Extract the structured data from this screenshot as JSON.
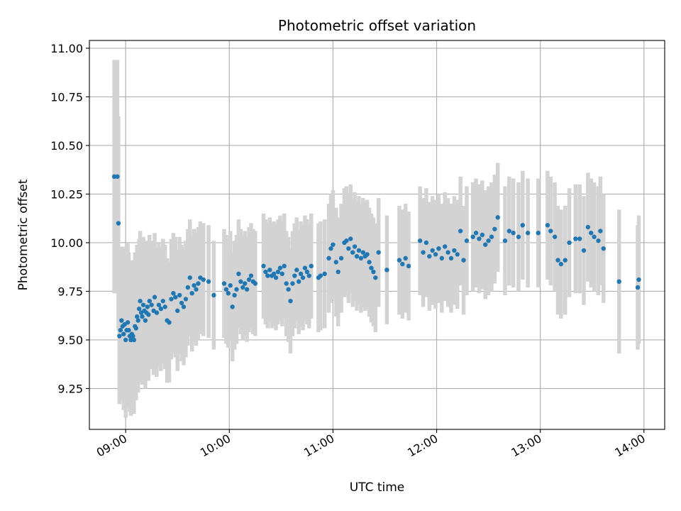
{
  "chart_data": {
    "type": "scatter",
    "title": "Photometric offset variation",
    "xlabel": "UTC time",
    "ylabel": "Photometric offset",
    "x_unit": "hours UTC",
    "xlim": [
      8.65,
      14.2
    ],
    "ylim": [
      9.04,
      11.04
    ],
    "x_ticks": [
      {
        "value": 9,
        "label": "09:00"
      },
      {
        "value": 10,
        "label": "10:00"
      },
      {
        "value": 11,
        "label": "11:00"
      },
      {
        "value": 12,
        "label": "12:00"
      },
      {
        "value": 13,
        "label": "13:00"
      },
      {
        "value": 14,
        "label": "14:00"
      }
    ],
    "y_ticks": [
      {
        "value": 9.25,
        "label": "9.25"
      },
      {
        "value": 9.5,
        "label": "9.50"
      },
      {
        "value": 9.75,
        "label": "9.75"
      },
      {
        "value": 10.0,
        "label": "10.00"
      },
      {
        "value": 10.25,
        "label": "10.25"
      },
      {
        "value": 10.5,
        "label": "10.50"
      },
      {
        "value": 10.75,
        "label": "10.75"
      },
      {
        "value": 11.0,
        "label": "11.00"
      }
    ],
    "grid": true,
    "colors": {
      "points": "#1f77b4",
      "error_bars": "#d3d3d3",
      "grid": "#b0b0b0"
    },
    "points": [
      [
        8.89,
        10.34,
        0.6
      ],
      [
        8.92,
        10.34,
        0.6
      ],
      [
        8.93,
        10.1,
        0.55
      ],
      [
        8.94,
        9.52,
        0.35
      ],
      [
        8.95,
        9.55,
        0.36
      ],
      [
        8.96,
        9.6,
        0.38
      ],
      [
        8.97,
        9.57,
        0.38
      ],
      [
        8.98,
        9.53,
        0.39
      ],
      [
        8.99,
        9.58,
        0.4
      ],
      [
        9.0,
        9.5,
        0.4
      ],
      [
        9.01,
        9.55,
        0.4
      ],
      [
        9.02,
        9.59,
        0.41
      ],
      [
        9.03,
        9.55,
        0.4
      ],
      [
        9.04,
        9.52,
        0.39
      ],
      [
        9.05,
        9.5,
        0.39
      ],
      [
        9.06,
        9.53,
        0.38
      ],
      [
        9.07,
        9.52,
        0.38
      ],
      [
        9.08,
        9.5,
        0.38
      ],
      [
        9.09,
        9.57,
        0.38
      ],
      [
        9.1,
        9.56,
        0.37
      ],
      [
        9.11,
        9.62,
        0.37
      ],
      [
        9.12,
        9.6,
        0.37
      ],
      [
        9.13,
        9.66,
        0.36
      ],
      [
        9.14,
        9.7,
        0.36
      ],
      [
        9.15,
        9.64,
        0.36
      ],
      [
        9.16,
        9.62,
        0.35
      ],
      [
        9.17,
        9.68,
        0.35
      ],
      [
        9.18,
        9.65,
        0.35
      ],
      [
        9.19,
        9.6,
        0.35
      ],
      [
        9.2,
        9.64,
        0.34
      ],
      [
        9.21,
        9.67,
        0.34
      ],
      [
        9.22,
        9.63,
        0.34
      ],
      [
        9.23,
        9.7,
        0.34
      ],
      [
        9.25,
        9.68,
        0.33
      ],
      [
        9.27,
        9.65,
        0.33
      ],
      [
        9.28,
        9.72,
        0.33
      ],
      [
        9.3,
        9.64,
        0.33
      ],
      [
        9.32,
        9.68,
        0.32
      ],
      [
        9.34,
        9.66,
        0.32
      ],
      [
        9.36,
        9.7,
        0.32
      ],
      [
        9.38,
        9.67,
        0.32
      ],
      [
        9.4,
        9.6,
        0.32
      ],
      [
        9.42,
        9.59,
        0.31
      ],
      [
        9.44,
        9.71,
        0.31
      ],
      [
        9.46,
        9.74,
        0.31
      ],
      [
        9.48,
        9.72,
        0.31
      ],
      [
        9.5,
        9.65,
        0.31
      ],
      [
        9.52,
        9.73,
        0.3
      ],
      [
        9.54,
        9.69,
        0.3
      ],
      [
        9.56,
        9.67,
        0.3
      ],
      [
        9.58,
        9.71,
        0.3
      ],
      [
        9.6,
        9.77,
        0.3
      ],
      [
        9.62,
        9.82,
        0.3
      ],
      [
        9.64,
        9.74,
        0.3
      ],
      [
        9.66,
        9.78,
        0.29
      ],
      [
        9.68,
        9.76,
        0.29
      ],
      [
        9.7,
        9.79,
        0.29
      ],
      [
        9.72,
        9.82,
        0.29
      ],
      [
        9.75,
        9.81,
        0.29
      ],
      [
        9.8,
        9.8,
        0.29
      ],
      [
        9.85,
        9.73,
        0.28
      ],
      [
        9.95,
        9.79,
        0.28
      ],
      [
        9.97,
        9.76,
        0.28
      ],
      [
        9.99,
        9.74,
        0.28
      ],
      [
        10.01,
        9.78,
        0.28
      ],
      [
        10.03,
        9.67,
        0.28
      ],
      [
        10.05,
        9.73,
        0.28
      ],
      [
        10.07,
        9.76,
        0.28
      ],
      [
        10.09,
        9.84,
        0.28
      ],
      [
        10.11,
        9.8,
        0.27
      ],
      [
        10.13,
        9.77,
        0.27
      ],
      [
        10.15,
        9.79,
        0.27
      ],
      [
        10.17,
        9.76,
        0.27
      ],
      [
        10.19,
        9.81,
        0.27
      ],
      [
        10.21,
        9.83,
        0.27
      ],
      [
        10.23,
        9.8,
        0.27
      ],
      [
        10.25,
        9.79,
        0.27
      ],
      [
        10.33,
        9.88,
        0.27
      ],
      [
        10.35,
        9.85,
        0.27
      ],
      [
        10.37,
        9.83,
        0.27
      ],
      [
        10.39,
        9.86,
        0.27
      ],
      [
        10.41,
        9.83,
        0.27
      ],
      [
        10.43,
        9.84,
        0.27
      ],
      [
        10.45,
        9.82,
        0.27
      ],
      [
        10.47,
        9.85,
        0.27
      ],
      [
        10.49,
        9.87,
        0.27
      ],
      [
        10.51,
        9.84,
        0.27
      ],
      [
        10.53,
        9.88,
        0.27
      ],
      [
        10.55,
        9.79,
        0.27
      ],
      [
        10.57,
        9.76,
        0.27
      ],
      [
        10.59,
        9.7,
        0.27
      ],
      [
        10.61,
        9.79,
        0.27
      ],
      [
        10.63,
        9.83,
        0.27
      ],
      [
        10.65,
        9.86,
        0.27
      ],
      [
        10.67,
        9.8,
        0.27
      ],
      [
        10.69,
        9.84,
        0.27
      ],
      [
        10.71,
        9.82,
        0.27
      ],
      [
        10.73,
        9.87,
        0.27
      ],
      [
        10.75,
        9.85,
        0.27
      ],
      [
        10.77,
        9.83,
        0.27
      ],
      [
        10.79,
        9.88,
        0.27
      ],
      [
        10.86,
        9.82,
        0.28
      ],
      [
        10.88,
        9.83,
        0.28
      ],
      [
        10.92,
        9.84,
        0.28
      ],
      [
        10.96,
        9.92,
        0.28
      ],
      [
        10.98,
        9.97,
        0.28
      ],
      [
        11.0,
        9.99,
        0.28
      ],
      [
        11.03,
        9.9,
        0.28
      ],
      [
        11.05,
        9.85,
        0.28
      ],
      [
        11.08,
        9.92,
        0.28
      ],
      [
        11.11,
        10.0,
        0.28
      ],
      [
        11.13,
        10.01,
        0.28
      ],
      [
        11.15,
        9.97,
        0.28
      ],
      [
        11.17,
        10.02,
        0.28
      ],
      [
        11.19,
        9.95,
        0.28
      ],
      [
        11.21,
        9.98,
        0.28
      ],
      [
        11.23,
        9.93,
        0.28
      ],
      [
        11.25,
        9.96,
        0.28
      ],
      [
        11.27,
        9.92,
        0.28
      ],
      [
        11.29,
        9.95,
        0.28
      ],
      [
        11.31,
        9.93,
        0.28
      ],
      [
        11.33,
        9.94,
        0.28
      ],
      [
        11.35,
        9.9,
        0.28
      ],
      [
        11.37,
        9.87,
        0.28
      ],
      [
        11.39,
        9.85,
        0.28
      ],
      [
        11.41,
        9.82,
        0.28
      ],
      [
        11.44,
        9.95,
        0.28
      ],
      [
        11.52,
        9.86,
        0.28
      ],
      [
        11.64,
        9.91,
        0.28
      ],
      [
        11.67,
        9.89,
        0.28
      ],
      [
        11.7,
        9.92,
        0.28
      ],
      [
        11.73,
        9.88,
        0.28
      ],
      [
        11.84,
        10.01,
        0.28
      ],
      [
        11.87,
        9.95,
        0.28
      ],
      [
        11.9,
        10.0,
        0.28
      ],
      [
        11.93,
        9.93,
        0.28
      ],
      [
        11.96,
        9.96,
        0.28
      ],
      [
        11.99,
        9.94,
        0.28
      ],
      [
        12.02,
        9.97,
        0.28
      ],
      [
        12.05,
        9.92,
        0.28
      ],
      [
        12.08,
        9.98,
        0.28
      ],
      [
        12.11,
        9.95,
        0.28
      ],
      [
        12.14,
        9.92,
        0.28
      ],
      [
        12.17,
        9.96,
        0.28
      ],
      [
        12.2,
        9.94,
        0.28
      ],
      [
        12.23,
        10.06,
        0.28
      ],
      [
        12.26,
        9.91,
        0.28
      ],
      [
        12.29,
        10.01,
        0.28
      ],
      [
        12.35,
        10.03,
        0.28
      ],
      [
        12.38,
        10.05,
        0.28
      ],
      [
        12.41,
        10.02,
        0.28
      ],
      [
        12.44,
        10.04,
        0.28
      ],
      [
        12.47,
        9.99,
        0.28
      ],
      [
        12.5,
        10.01,
        0.28
      ],
      [
        12.53,
        10.03,
        0.28
      ],
      [
        12.56,
        10.07,
        0.28
      ],
      [
        12.59,
        10.13,
        0.28
      ],
      [
        12.66,
        10.01,
        0.28
      ],
      [
        12.7,
        10.06,
        0.28
      ],
      [
        12.74,
        10.05,
        0.28
      ],
      [
        12.79,
        10.03,
        0.28
      ],
      [
        12.83,
        10.09,
        0.28
      ],
      [
        12.88,
        10.05,
        0.28
      ],
      [
        12.98,
        10.05,
        0.28
      ],
      [
        13.07,
        10.09,
        0.28
      ],
      [
        13.1,
        10.06,
        0.28
      ],
      [
        13.14,
        10.03,
        0.28
      ],
      [
        13.17,
        9.91,
        0.28
      ],
      [
        13.2,
        9.89,
        0.28
      ],
      [
        13.24,
        9.91,
        0.28
      ],
      [
        13.28,
        10.0,
        0.28
      ],
      [
        13.34,
        10.02,
        0.28
      ],
      [
        13.38,
        10.02,
        0.28
      ],
      [
        13.42,
        9.96,
        0.28
      ],
      [
        13.46,
        10.08,
        0.28
      ],
      [
        13.49,
        10.05,
        0.28
      ],
      [
        13.52,
        10.03,
        0.28
      ],
      [
        13.56,
        10.01,
        0.28
      ],
      [
        13.58,
        10.06,
        0.28
      ],
      [
        13.61,
        9.97,
        0.28
      ],
      [
        13.76,
        9.8,
        0.37
      ],
      [
        13.94,
        9.77,
        0.32
      ],
      [
        13.95,
        9.81,
        0.33
      ]
    ]
  }
}
